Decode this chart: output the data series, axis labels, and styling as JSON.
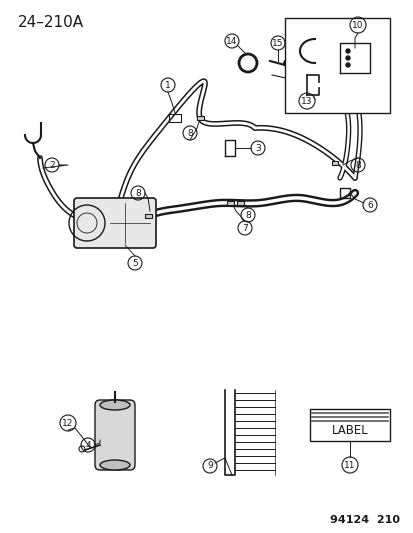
{
  "title": "24–210A",
  "footer": "94124  210",
  "bg_color": "#ffffff",
  "line_color": "#1a1a1a",
  "title_fontsize": 11,
  "footer_fontsize": 8,
  "label_fontsize": 7.5
}
